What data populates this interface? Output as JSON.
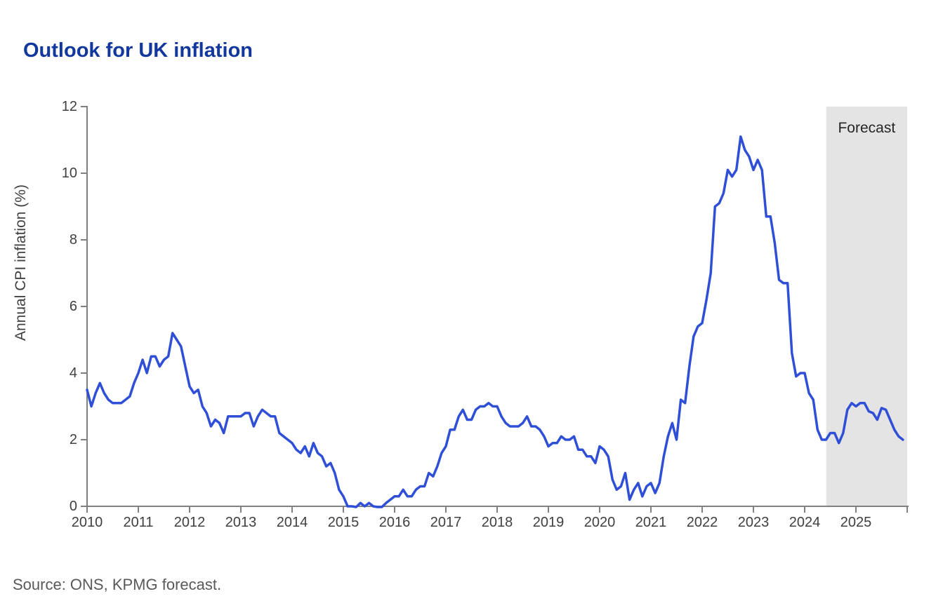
{
  "page": {
    "source_note": "Source: ONS, KPMG forecast."
  },
  "chart_data": {
    "type": "line",
    "title": "Outlook for UK inflation",
    "xlabel": "",
    "ylabel": "Annual CPI inflation (%)",
    "grid": "off",
    "legend": "none",
    "ylim": [
      0,
      12
    ],
    "y_ticks": [
      0,
      2,
      4,
      6,
      8,
      10,
      12
    ],
    "xlim_years": [
      2010,
      2026
    ],
    "x_tick_labels": [
      "2010",
      "2011",
      "2012",
      "2013",
      "2014",
      "2015",
      "2016",
      "2017",
      "2018",
      "2019",
      "2020",
      "2021",
      "2022",
      "2023",
      "2024",
      "2025"
    ],
    "forecast_band": {
      "label": "Forecast",
      "start_year": 2024.42,
      "end_year": 2026
    },
    "series": [
      {
        "name": "Annual CPI inflation (%)",
        "frequency": "monthly",
        "start": "2010-01",
        "values_by_year": {
          "2010": [
            3.5,
            3.0,
            3.4,
            3.7,
            3.4,
            3.2,
            3.1,
            3.1,
            3.1,
            3.2,
            3.3,
            3.7
          ],
          "2011": [
            4.0,
            4.4,
            4.0,
            4.5,
            4.5,
            4.2,
            4.4,
            4.5,
            5.2,
            5.0,
            4.8,
            4.2
          ],
          "2012": [
            3.6,
            3.4,
            3.5,
            3.0,
            2.8,
            2.4,
            2.6,
            2.5,
            2.2,
            2.7,
            2.7,
            2.7
          ],
          "2013": [
            2.7,
            2.8,
            2.8,
            2.4,
            2.7,
            2.9,
            2.8,
            2.7,
            2.7,
            2.2,
            2.1,
            2.0
          ],
          "2014": [
            1.9,
            1.7,
            1.6,
            1.8,
            1.5,
            1.9,
            1.6,
            1.5,
            1.2,
            1.3,
            1.0,
            0.5
          ],
          "2015": [
            0.3,
            0.0,
            0.0,
            -0.1,
            0.1,
            0.0,
            0.1,
            0.0,
            -0.1,
            -0.1,
            0.1,
            0.2
          ],
          "2016": [
            0.3,
            0.3,
            0.5,
            0.3,
            0.3,
            0.5,
            0.6,
            0.6,
            1.0,
            0.9,
            1.2,
            1.6
          ],
          "2017": [
            1.8,
            2.3,
            2.3,
            2.7,
            2.9,
            2.6,
            2.6,
            2.9,
            3.0,
            3.0,
            3.1,
            3.0
          ],
          "2018": [
            3.0,
            2.7,
            2.5,
            2.4,
            2.4,
            2.4,
            2.5,
            2.7,
            2.4,
            2.4,
            2.3,
            2.1
          ],
          "2019": [
            1.8,
            1.9,
            1.9,
            2.1,
            2.0,
            2.0,
            2.1,
            1.7,
            1.7,
            1.5,
            1.5,
            1.3
          ],
          "2020": [
            1.8,
            1.7,
            1.5,
            0.8,
            0.5,
            0.6,
            1.0,
            0.2,
            0.5,
            0.7,
            0.3,
            0.6
          ],
          "2021": [
            0.7,
            0.4,
            0.7,
            1.5,
            2.1,
            2.5,
            2.0,
            3.2,
            3.1,
            4.2,
            5.1,
            5.4
          ],
          "2022": [
            5.5,
            6.2,
            7.0,
            9.0,
            9.1,
            9.4,
            10.1,
            9.9,
            10.1,
            11.1,
            10.7,
            10.5
          ],
          "2023": [
            10.1,
            10.4,
            10.1,
            8.7,
            8.7,
            7.9,
            6.8,
            6.7,
            6.7,
            4.6,
            3.9,
            4.0
          ],
          "2024": [
            4.0,
            3.4,
            3.2,
            2.3,
            2.0,
            2.0,
            2.2,
            2.2,
            1.9,
            2.2,
            2.9,
            3.1
          ],
          "2025": [
            3.0,
            3.1,
            3.1,
            2.85,
            2.8,
            2.6,
            2.95,
            2.9,
            2.6,
            2.3,
            2.1,
            2.0
          ]
        }
      }
    ],
    "colors": {
      "line": "#2E4FD6",
      "title": "#12389E",
      "axis": "#808080",
      "tick_label": "#404040",
      "forecast_band_fill": "#E4E4E4",
      "forecast_label": "#262626",
      "source_text": "#595959"
    }
  }
}
